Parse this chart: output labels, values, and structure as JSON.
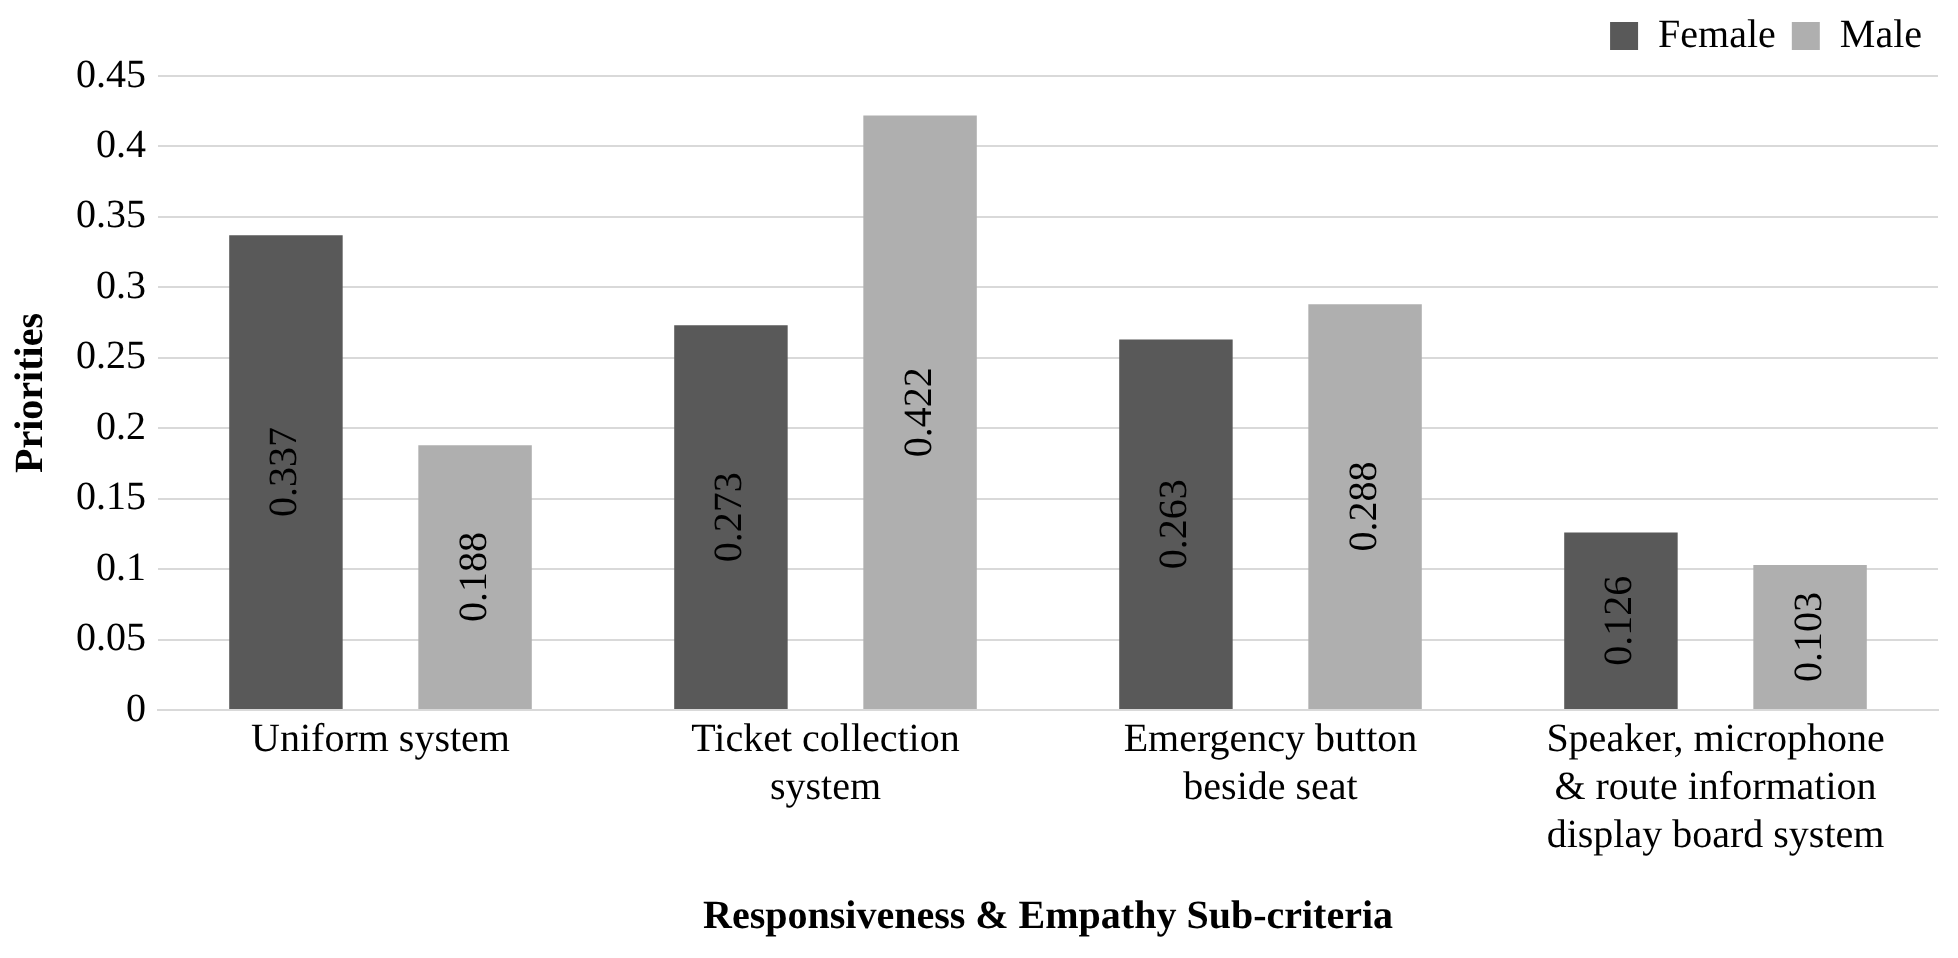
{
  "chart_data": {
    "type": "bar",
    "xlabel": "Responsiveness & Empathy Sub-criteria",
    "ylabel": "Priorities",
    "categories": [
      "Uniform system",
      "Ticket collection system",
      "Emergency button beside seat",
      "Speaker, microphone & route information display board system"
    ],
    "series": [
      {
        "name": "Female",
        "color": "#595959",
        "values": [
          0.337,
          0.273,
          0.263,
          0.126
        ]
      },
      {
        "name": "Male",
        "color": "#afafaf",
        "values": [
          0.188,
          0.422,
          0.288,
          0.103
        ]
      }
    ],
    "ylim": [
      0,
      0.45
    ],
    "yticks": [
      0,
      0.05,
      0.1,
      0.15,
      0.2,
      0.25,
      0.3,
      0.35,
      0.4,
      0.45
    ],
    "grid": "y",
    "legend": "top right",
    "data_labels": true
  }
}
